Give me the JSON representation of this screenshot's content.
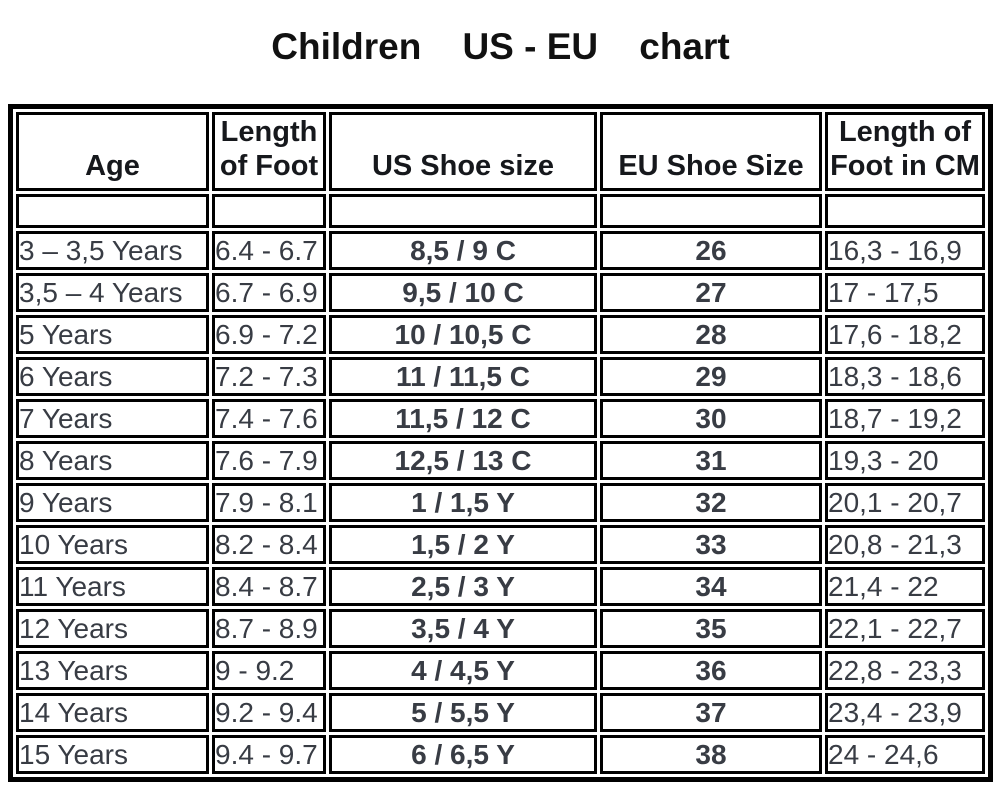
{
  "title": "Children    US - EU    chart",
  "chart_data": {
    "type": "table",
    "title": "Children    US - EU    chart",
    "columns": [
      "Age",
      "Length\nof Foot",
      "US Shoe size",
      "EU Shoe Size",
      "Length of\nFoot in CM"
    ],
    "rows": [
      [
        "3 – 3,5 Years",
        "6.4 - 6.7",
        "8,5 / 9 C",
        "26",
        "16,3 - 16,9"
      ],
      [
        "3,5 – 4 Years",
        "6.7 - 6.9",
        "9,5 / 10 C",
        "27",
        "17 - 17,5"
      ],
      [
        "5 Years",
        "6.9 - 7.2",
        "10 / 10,5 C",
        "28",
        "17,6 - 18,2"
      ],
      [
        "6 Years",
        "7.2 - 7.3",
        "11 / 11,5 C",
        "29",
        "18,3 - 18,6"
      ],
      [
        "7 Years",
        "7.4 - 7.6",
        "11,5 / 12 C",
        "30",
        "18,7 - 19,2"
      ],
      [
        "8 Years",
        "7.6 - 7.9",
        "12,5 / 13 C",
        "31",
        "19,3 - 20"
      ],
      [
        "9 Years",
        "7.9 - 8.1",
        "1 / 1,5 Y",
        "32",
        "20,1 - 20,7"
      ],
      [
        "10 Years",
        "8.2 - 8.4",
        "1,5 / 2 Y",
        "33",
        "20,8 - 21,3"
      ],
      [
        "11 Years",
        "8.4 - 8.7",
        "2,5 / 3 Y",
        "34",
        "21,4 - 22"
      ],
      [
        "12 Years",
        "8.7 - 8.9",
        "3,5 / 4 Y",
        "35",
        "22,1 - 22,7"
      ],
      [
        "13 Years",
        "9 - 9.2",
        "4 / 4,5 Y",
        "36",
        "22,8 - 23,3"
      ],
      [
        "14 Years",
        "9.2 - 9.4",
        "5 / 5,5 Y",
        "37",
        "23,4 - 23,9"
      ],
      [
        "15 Years",
        "9.4 - 9.7",
        "6 / 6,5 Y",
        "38",
        "24 - 24,6"
      ]
    ],
    "layout": {
      "left_aligned_columns": [
        0,
        1,
        4
      ],
      "bold_centered_columns": [
        2,
        3
      ],
      "spacer_row_after_header": true
    }
  },
  "colors": {
    "border": "#000000",
    "background": "#ffffff",
    "text": "#383c44",
    "bold_text": "#1b1e23"
  }
}
